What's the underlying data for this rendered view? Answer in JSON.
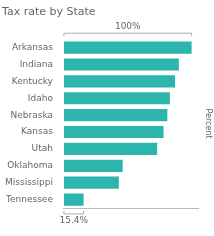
{
  "chart_data": {
    "type": "bar",
    "orientation": "horizontal",
    "title": "Tax rate by State",
    "xlabel": "Percent",
    "annotations": [
      "100%",
      "15.4%"
    ],
    "categories": [
      "Arkansas",
      "Indiana",
      "Kentucky",
      "Idaho",
      "Nebraska",
      "Kansas",
      "Utah",
      "Oklahoma",
      "Mississippi",
      "Tennessee"
    ],
    "values": [
      100,
      90,
      87,
      83,
      81,
      78,
      73,
      46,
      43,
      15.4
    ],
    "color": "#2bb5ad",
    "xlim": [
      0,
      105
    ],
    "grid": false,
    "tick_labels": "y"
  }
}
